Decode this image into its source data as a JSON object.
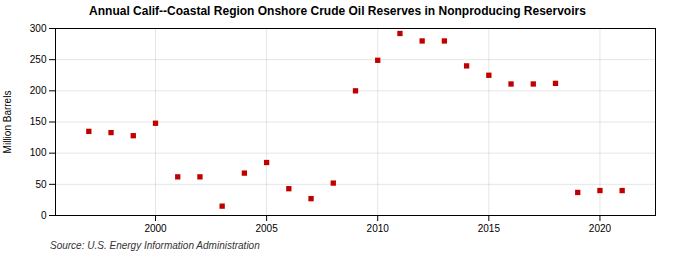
{
  "chart_data": {
    "type": "scatter",
    "title": "Annual Calif--Coastal Region Onshore Crude Oil Reserves in Nonproducing Reservoirs",
    "ylabel": "Million Barrels",
    "source": "Source: U.S. Energy Information Administration",
    "x": [
      1997,
      1998,
      1999,
      2000,
      2001,
      2002,
      2003,
      2004,
      2005,
      2006,
      2007,
      2008,
      2009,
      2010,
      2011,
      2012,
      2013,
      2014,
      2015,
      2016,
      2017,
      2018,
      2019,
      2020,
      2021
    ],
    "values": [
      135,
      133,
      128,
      148,
      62,
      62,
      15,
      68,
      85,
      43,
      27,
      52,
      200,
      249,
      292,
      280,
      280,
      240,
      225,
      211,
      211,
      212,
      37,
      40,
      40
    ],
    "color": "#c00000",
    "marker": "square",
    "xlim": [
      1995.5,
      2022.5
    ],
    "ylim": [
      0,
      300
    ],
    "xticks": [
      2000,
      2005,
      2010,
      2015,
      2020
    ],
    "yticks": [
      0,
      50,
      100,
      150,
      200,
      250,
      300
    ],
    "grid": true
  }
}
